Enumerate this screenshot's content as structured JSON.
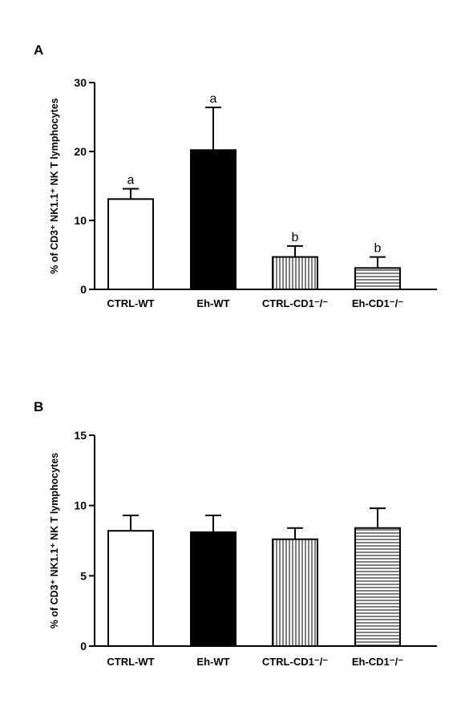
{
  "chart_data": [
    {
      "type": "bar",
      "panel_label": "A",
      "ylabel": "% of  CD3⁺ NK1.1⁺ NK T lymphocytes",
      "ylim": [
        0,
        30
      ],
      "yticks": [
        0,
        10,
        20,
        30
      ],
      "categories": [
        "CTRL-WT",
        "Eh-WT",
        "CTRL-CD1⁻/⁻",
        "Eh-CD1⁻/⁻"
      ],
      "values": [
        13.1,
        20.2,
        4.7,
        3.1
      ],
      "errors": [
        1.5,
        6.2,
        1.6,
        1.6
      ],
      "annotations": [
        "a",
        "a",
        "b",
        "b"
      ],
      "fills": [
        "white",
        "black",
        "vertical-stripes",
        "horizontal-stripes"
      ]
    },
    {
      "type": "bar",
      "panel_label": "B",
      "ylabel": "% of CD3⁺ NK1.1⁺ NK T lymphocytes",
      "ylim": [
        0,
        15
      ],
      "yticks": [
        0,
        5,
        10,
        15
      ],
      "categories": [
        "CTRL-WT",
        "Eh-WT",
        "CTRL-CD1⁻/⁻",
        "Eh-CD1⁻/⁻"
      ],
      "values": [
        8.2,
        8.1,
        7.6,
        8.4
      ],
      "errors": [
        1.1,
        1.2,
        0.8,
        1.4
      ],
      "annotations": [
        "",
        "",
        "",
        ""
      ],
      "fills": [
        "white",
        "black",
        "vertical-stripes",
        "horizontal-stripes"
      ]
    }
  ]
}
